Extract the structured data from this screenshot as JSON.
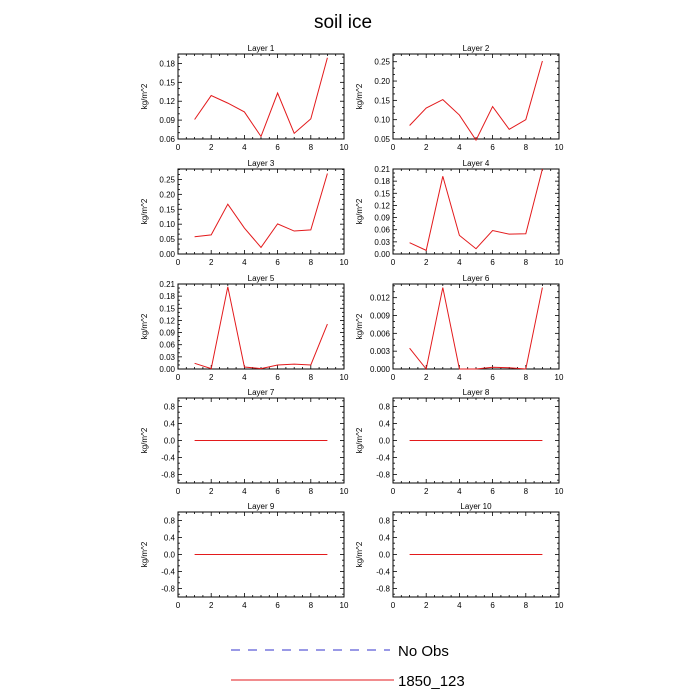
{
  "figure": {
    "title": "soil ice"
  },
  "legend": {
    "entries": [
      {
        "label": "No Obs",
        "color": "#3333cc",
        "dash": "dashed"
      },
      {
        "label": "1850_123",
        "color": "#e31a1c",
        "dash": "solid"
      }
    ]
  },
  "colors": {
    "series": "#e31a1c",
    "obs": "#3333cc",
    "axis": "#000000"
  },
  "chart_data": [
    {
      "type": "line",
      "title": "Layer 1",
      "ylabel": "kg/m^2",
      "xlim": [
        0,
        10
      ],
      "ylim": [
        0.06,
        0.195
      ],
      "xticks": [
        0,
        2,
        4,
        6,
        8,
        10
      ],
      "xtick_labels": [
        "0",
        "2",
        "4",
        "6",
        "8",
        "10"
      ],
      "yticks": [
        0.06,
        0.09,
        0.12,
        0.15,
        0.18
      ],
      "ytick_labels": [
        "0.06",
        "0.09",
        "0.12",
        "0.15",
        "0.18"
      ],
      "x": [
        1,
        2,
        3,
        4,
        5,
        6,
        7,
        8,
        9
      ],
      "series": [
        {
          "name": "1850_123",
          "values": [
            0.091,
            0.129,
            0.117,
            0.103,
            0.064,
            0.133,
            0.069,
            0.092,
            0.189
          ]
        }
      ]
    },
    {
      "type": "line",
      "title": "Layer 2",
      "ylabel": "kg/m^2",
      "xlim": [
        0,
        10
      ],
      "ylim": [
        0.05,
        0.27
      ],
      "xticks": [
        0,
        2,
        4,
        6,
        8,
        10
      ],
      "xtick_labels": [
        "0",
        "2",
        "4",
        "6",
        "8",
        "10"
      ],
      "yticks": [
        0.05,
        0.1,
        0.15,
        0.2,
        0.25
      ],
      "ytick_labels": [
        "0.05",
        "0.10",
        "0.15",
        "0.20",
        "0.25"
      ],
      "x": [
        1,
        2,
        3,
        4,
        5,
        6,
        7,
        8,
        9
      ],
      "series": [
        {
          "name": "1850_123",
          "values": [
            0.085,
            0.13,
            0.152,
            0.112,
            0.047,
            0.134,
            0.075,
            0.1,
            0.252
          ]
        }
      ]
    },
    {
      "type": "line",
      "title": "Layer 3",
      "ylabel": "kg/m^2",
      "xlim": [
        0,
        10
      ],
      "ylim": [
        0.0,
        0.285
      ],
      "xticks": [
        0,
        2,
        4,
        6,
        8,
        10
      ],
      "xtick_labels": [
        "0",
        "2",
        "4",
        "6",
        "8",
        "10"
      ],
      "yticks": [
        0,
        0.05,
        0.1,
        0.15,
        0.2,
        0.25
      ],
      "ytick_labels": [
        "0.00",
        "0.05",
        "0.10",
        "0.15",
        "0.20",
        "0.25"
      ],
      "x": [
        1,
        2,
        3,
        4,
        5,
        6,
        7,
        8,
        9
      ],
      "series": [
        {
          "name": "1850_123",
          "values": [
            0.058,
            0.064,
            0.167,
            0.087,
            0.022,
            0.101,
            0.077,
            0.081,
            0.27
          ]
        }
      ]
    },
    {
      "type": "line",
      "title": "Layer 4",
      "ylabel": "kg/m^2",
      "xlim": [
        0,
        10
      ],
      "ylim": [
        0.0,
        0.21
      ],
      "xticks": [
        0,
        2,
        4,
        6,
        8,
        10
      ],
      "xtick_labels": [
        "0",
        "2",
        "4",
        "6",
        "8",
        "10"
      ],
      "yticks": [
        0,
        0.03,
        0.06,
        0.09,
        0.12,
        0.15,
        0.18,
        0.21
      ],
      "ytick_labels": [
        "0.00",
        "0.03",
        "0.06",
        "0.09",
        "0.12",
        "0.15",
        "0.18",
        "0.21"
      ],
      "x": [
        1,
        2,
        3,
        4,
        5,
        6,
        7,
        8,
        9
      ],
      "series": [
        {
          "name": "1850_123",
          "values": [
            0.028,
            0.009,
            0.192,
            0.046,
            0.013,
            0.058,
            0.049,
            0.05,
            0.21
          ]
        }
      ]
    },
    {
      "type": "line",
      "title": "Layer 5",
      "ylabel": "kg/m^2",
      "xlim": [
        0,
        10
      ],
      "ylim": [
        0.0,
        0.21
      ],
      "xticks": [
        0,
        2,
        4,
        6,
        8,
        10
      ],
      "xtick_labels": [
        "0",
        "2",
        "4",
        "6",
        "8",
        "10"
      ],
      "yticks": [
        0,
        0.03,
        0.06,
        0.09,
        0.12,
        0.15,
        0.18,
        0.21
      ],
      "ytick_labels": [
        "0.00",
        "0.03",
        "0.06",
        "0.09",
        "0.12",
        "0.15",
        "0.18",
        "0.21"
      ],
      "x": [
        1,
        2,
        3,
        4,
        5,
        6,
        7,
        8,
        9
      ],
      "series": [
        {
          "name": "1850_123",
          "values": [
            0.014,
            0.001,
            0.203,
            0.005,
            0.001,
            0.01,
            0.012,
            0.01,
            0.111
          ]
        }
      ]
    },
    {
      "type": "line",
      "title": "Layer 6",
      "ylabel": "kg/m^2",
      "xlim": [
        0,
        10
      ],
      "ylim": [
        0.0,
        0.0143
      ],
      "xticks": [
        0,
        2,
        4,
        6,
        8,
        10
      ],
      "xtick_labels": [
        "0",
        "2",
        "4",
        "6",
        "8",
        "10"
      ],
      "yticks": [
        0,
        0.003,
        0.006,
        0.009,
        0.012
      ],
      "ytick_labels": [
        "0.000",
        "0.003",
        "0.006",
        "0.009",
        "0.012"
      ],
      "x": [
        1,
        2,
        3,
        4,
        5,
        6,
        7,
        8,
        9
      ],
      "series": [
        {
          "name": "1850_123",
          "values": [
            0.0035,
            0.0,
            0.0137,
            0.0,
            0.0,
            0.0003,
            0.0002,
            0.0,
            0.0137
          ]
        }
      ]
    },
    {
      "type": "line",
      "title": "Layer 7",
      "ylabel": "kg/m^2",
      "xlim": [
        0,
        10
      ],
      "ylim": [
        -1.0,
        1.0
      ],
      "xticks": [
        0,
        2,
        4,
        6,
        8,
        10
      ],
      "xtick_labels": [
        "0",
        "2",
        "4",
        "6",
        "8",
        "10"
      ],
      "yticks": [
        -0.8,
        -0.4,
        0,
        0.4,
        0.8
      ],
      "ytick_labels": [
        "-0.8",
        "-0.4",
        "0.0",
        "0.4",
        "0.8"
      ],
      "x": [
        1,
        2,
        3,
        4,
        5,
        6,
        7,
        8,
        9
      ],
      "series": [
        {
          "name": "1850_123",
          "values": [
            0,
            0,
            0,
            0,
            0,
            0,
            0,
            0,
            0
          ]
        }
      ]
    },
    {
      "type": "line",
      "title": "Layer 8",
      "ylabel": "kg/m^2",
      "xlim": [
        0,
        10
      ],
      "ylim": [
        -1.0,
        1.0
      ],
      "xticks": [
        0,
        2,
        4,
        6,
        8,
        10
      ],
      "xtick_labels": [
        "0",
        "2",
        "4",
        "6",
        "8",
        "10"
      ],
      "yticks": [
        -0.8,
        -0.4,
        0,
        0.4,
        0.8
      ],
      "ytick_labels": [
        "-0.8",
        "-0.4",
        "0.0",
        "0.4",
        "0.8"
      ],
      "x": [
        1,
        2,
        3,
        4,
        5,
        6,
        7,
        8,
        9
      ],
      "series": [
        {
          "name": "1850_123",
          "values": [
            0,
            0,
            0,
            0,
            0,
            0,
            0,
            0,
            0
          ]
        }
      ]
    },
    {
      "type": "line",
      "title": "Layer 9",
      "ylabel": "kg/m^2",
      "xlim": [
        0,
        10
      ],
      "ylim": [
        -1.0,
        1.0
      ],
      "xticks": [
        0,
        2,
        4,
        6,
        8,
        10
      ],
      "xtick_labels": [
        "0",
        "2",
        "4",
        "6",
        "8",
        "10"
      ],
      "yticks": [
        -0.8,
        -0.4,
        0,
        0.4,
        0.8
      ],
      "ytick_labels": [
        "-0.8",
        "-0.4",
        "0.0",
        "0.4",
        "0.8"
      ],
      "x": [
        1,
        2,
        3,
        4,
        5,
        6,
        7,
        8,
        9
      ],
      "series": [
        {
          "name": "1850_123",
          "values": [
            0,
            0,
            0,
            0,
            0,
            0,
            0,
            0,
            0
          ]
        }
      ]
    },
    {
      "type": "line",
      "title": "Layer 10",
      "ylabel": "kg/m^2",
      "xlim": [
        0,
        10
      ],
      "ylim": [
        -1.0,
        1.0
      ],
      "xticks": [
        0,
        2,
        4,
        6,
        8,
        10
      ],
      "xtick_labels": [
        "0",
        "2",
        "4",
        "6",
        "8",
        "10"
      ],
      "yticks": [
        -0.8,
        -0.4,
        0,
        0.4,
        0.8
      ],
      "ytick_labels": [
        "-0.8",
        "-0.4",
        "0.0",
        "0.4",
        "0.8"
      ],
      "x": [
        1,
        2,
        3,
        4,
        5,
        6,
        7,
        8,
        9
      ],
      "series": [
        {
          "name": "1850_123",
          "values": [
            0,
            0,
            0,
            0,
            0,
            0,
            0,
            0,
            0
          ]
        }
      ]
    }
  ]
}
